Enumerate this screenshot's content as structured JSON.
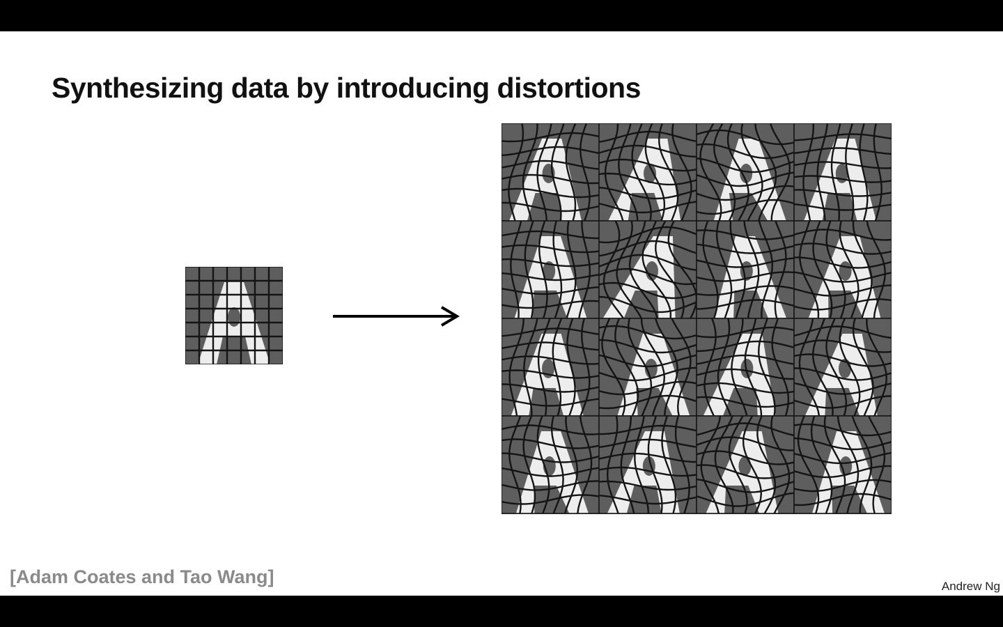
{
  "slide": {
    "title": "Synthesizing data by introducing distortions",
    "citation": "[Adam Coates and Tao Wang]",
    "author": "Andrew Ng"
  },
  "figure": {
    "original_letter": "A",
    "distorted_rows": 4,
    "distorted_cols": 4,
    "colors": {
      "tile_background": "#5e5e5e",
      "letter_fill": "#f4f4f4",
      "grid_lines": "#141414",
      "arrow": "#000000"
    }
  }
}
